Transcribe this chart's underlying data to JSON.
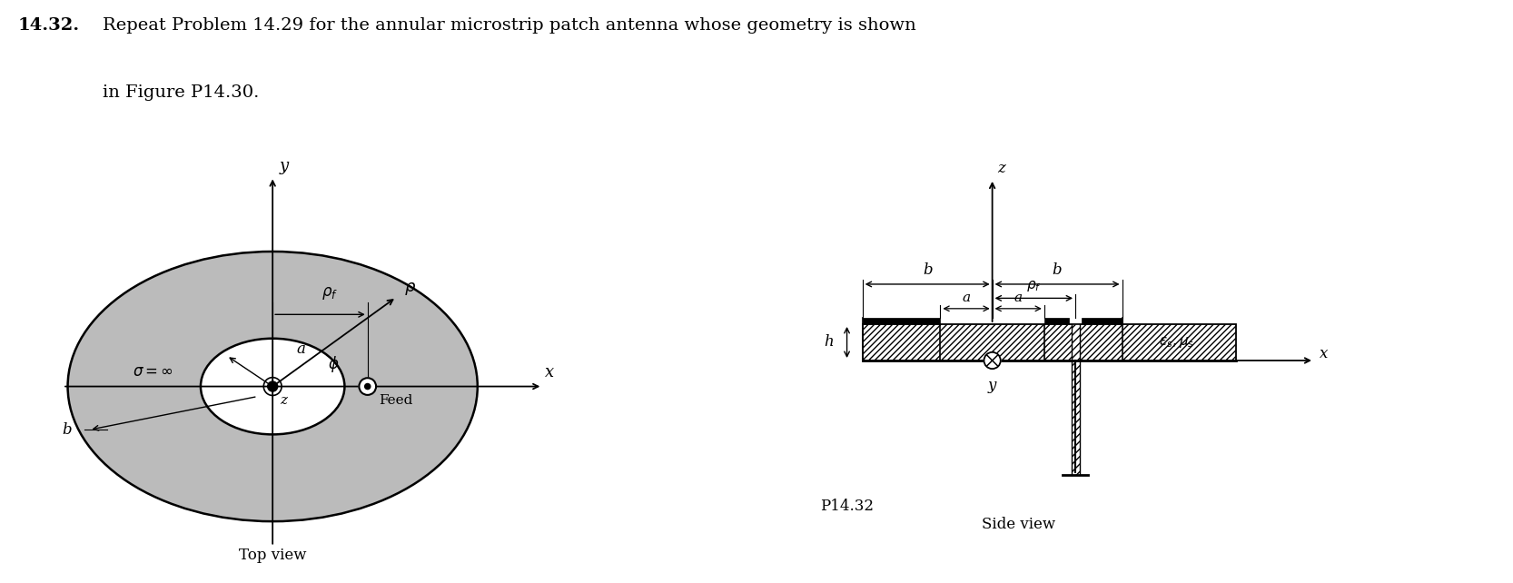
{
  "background_color": "#ffffff",
  "title_bold": "14.32.",
  "title_rest": "Repeat Problem 14.29 for the annular microstrip patch antenna whose geometry is shown",
  "title_line2": "in Figure P14.30.",
  "title_fontsize": 14,
  "top_view_label": "Top view",
  "side_view_label": "Side view",
  "p14_label": "P14.32",
  "ring_gray": "#bbbbbb",
  "ring_gray_inner": "#cccccc",
  "black": "#000000",
  "white": "#ffffff"
}
